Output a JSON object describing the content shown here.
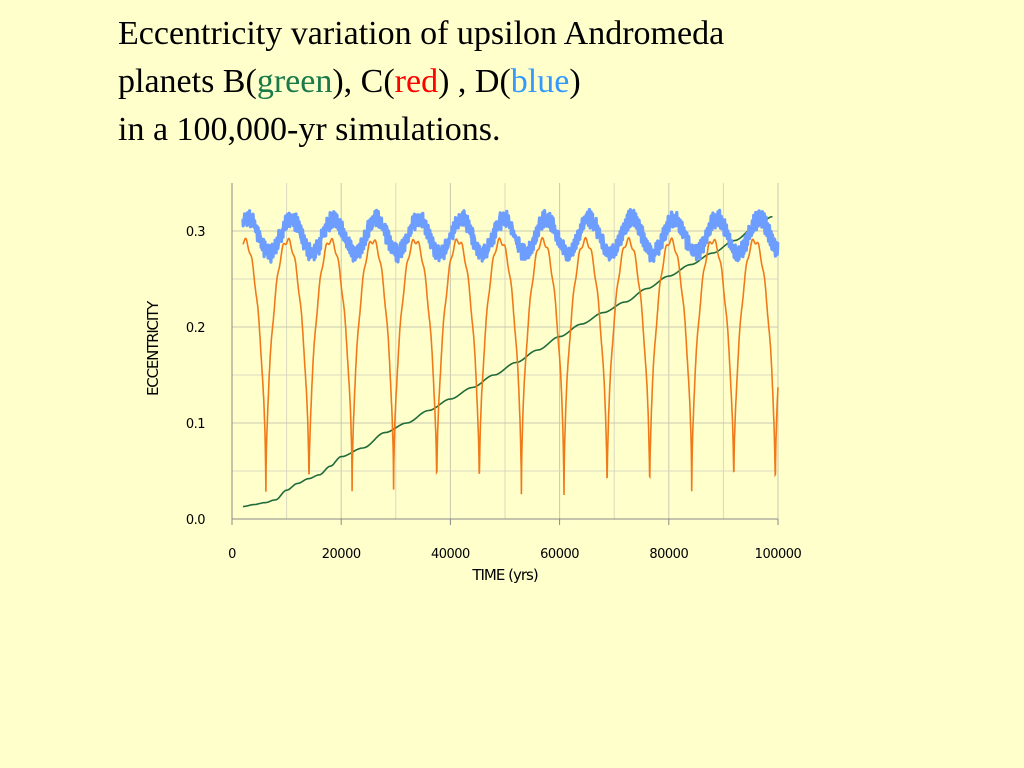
{
  "title": {
    "line1": "Eccentricity variation of upsilon Andromeda",
    "line2_prefix": "planets B(",
    "green_word": "green",
    "line2_mid1": "), C(",
    "red_word": "red",
    "line2_mid2": ") , D(",
    "blue_word": "blue",
    "line2_suffix": ")",
    "line3": "in a 100,000-yr simulations."
  },
  "colors": {
    "background": "#ffffcc",
    "green": "#1f6b3a",
    "red": "#f07a1a",
    "blue": "#6d9eff",
    "title_green": "#1a7a4a",
    "title_red": "#ff0000",
    "title_blue": "#3399ff"
  },
  "chart_data": {
    "type": "line",
    "title": "",
    "xlabel": "TIME (yrs)",
    "ylabel": "ECCENTRICITY",
    "xlim": [
      0,
      100000
    ],
    "ylim": [
      0,
      0.35
    ],
    "xticks": [
      {
        "value": 0,
        "label": "0"
      },
      {
        "value": 20000,
        "label": "20000"
      },
      {
        "value": 40000,
        "label": "40000"
      },
      {
        "value": 60000,
        "label": "60000"
      },
      {
        "value": 80000,
        "label": "80000"
      },
      {
        "value": 100000,
        "label": "100000"
      }
    ],
    "yticks": [
      {
        "value": 0,
        "label": "0.0"
      },
      {
        "value": 0.1,
        "label": "0.1"
      },
      {
        "value": 0.2,
        "label": "0.2"
      },
      {
        "value": 0.3,
        "label": "0.3"
      }
    ],
    "grid": true,
    "legend": "none",
    "series": [
      {
        "color": "#1f6b3a",
        "x": [
          2000,
          4000,
          6000,
          8000,
          10000,
          12000,
          14000,
          16000,
          18000,
          20000,
          24000,
          28000,
          32000,
          36000,
          40000,
          44000,
          48000,
          52000,
          56000,
          60000,
          64000,
          68000,
          72000,
          76000,
          80000,
          84000,
          88000,
          92000,
          96000,
          99000
        ],
        "y": [
          0.013,
          0.015,
          0.017,
          0.02,
          0.03,
          0.037,
          0.042,
          0.046,
          0.055,
          0.065,
          0.074,
          0.09,
          0.1,
          0.113,
          0.125,
          0.137,
          0.15,
          0.163,
          0.176,
          0.19,
          0.203,
          0.215,
          0.226,
          0.24,
          0.253,
          0.265,
          0.277,
          0.29,
          0.305,
          0.315
        ]
      },
      {
        "color": "#f07a1a",
        "max": 0.29,
        "min": 0.028,
        "x_start": 2000,
        "x_end": 100000,
        "minima_x": [
          6200,
          14100,
          22000,
          29600,
          37500,
          45300,
          53000,
          60800,
          68700,
          76500,
          84200,
          91900,
          99500
        ]
      },
      {
        "color": "#6d9eff",
        "center": 0.295,
        "amplitude": 0.018,
        "period": 7800,
        "noise": 0.006,
        "x_start": 2000,
        "x_end": 100000
      }
    ]
  }
}
